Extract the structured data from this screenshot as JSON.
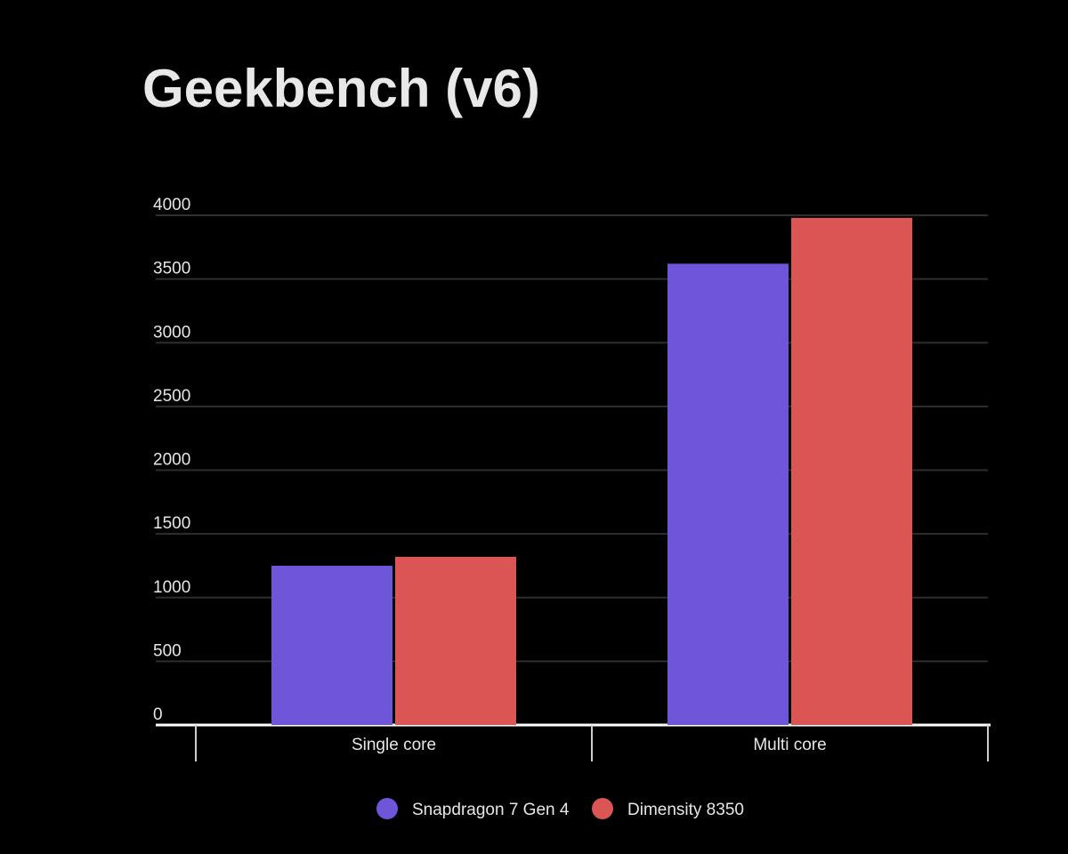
{
  "chart_data": {
    "type": "bar",
    "title": "Geekbench (v6)",
    "categories": [
      "Single core",
      "Multi core"
    ],
    "series": [
      {
        "name": "Snapdragon 7 Gen 4",
        "color": "#6f55da",
        "values": [
          1250,
          3620
        ]
      },
      {
        "name": "Dimensity 8350",
        "color": "#db5555",
        "values": [
          1320,
          3980
        ]
      }
    ],
    "ylim": [
      0,
      4000
    ],
    "yticks": [
      0,
      500,
      1000,
      1500,
      2000,
      2500,
      3000,
      3500,
      4000
    ],
    "grid": true,
    "legend": "bottom"
  }
}
